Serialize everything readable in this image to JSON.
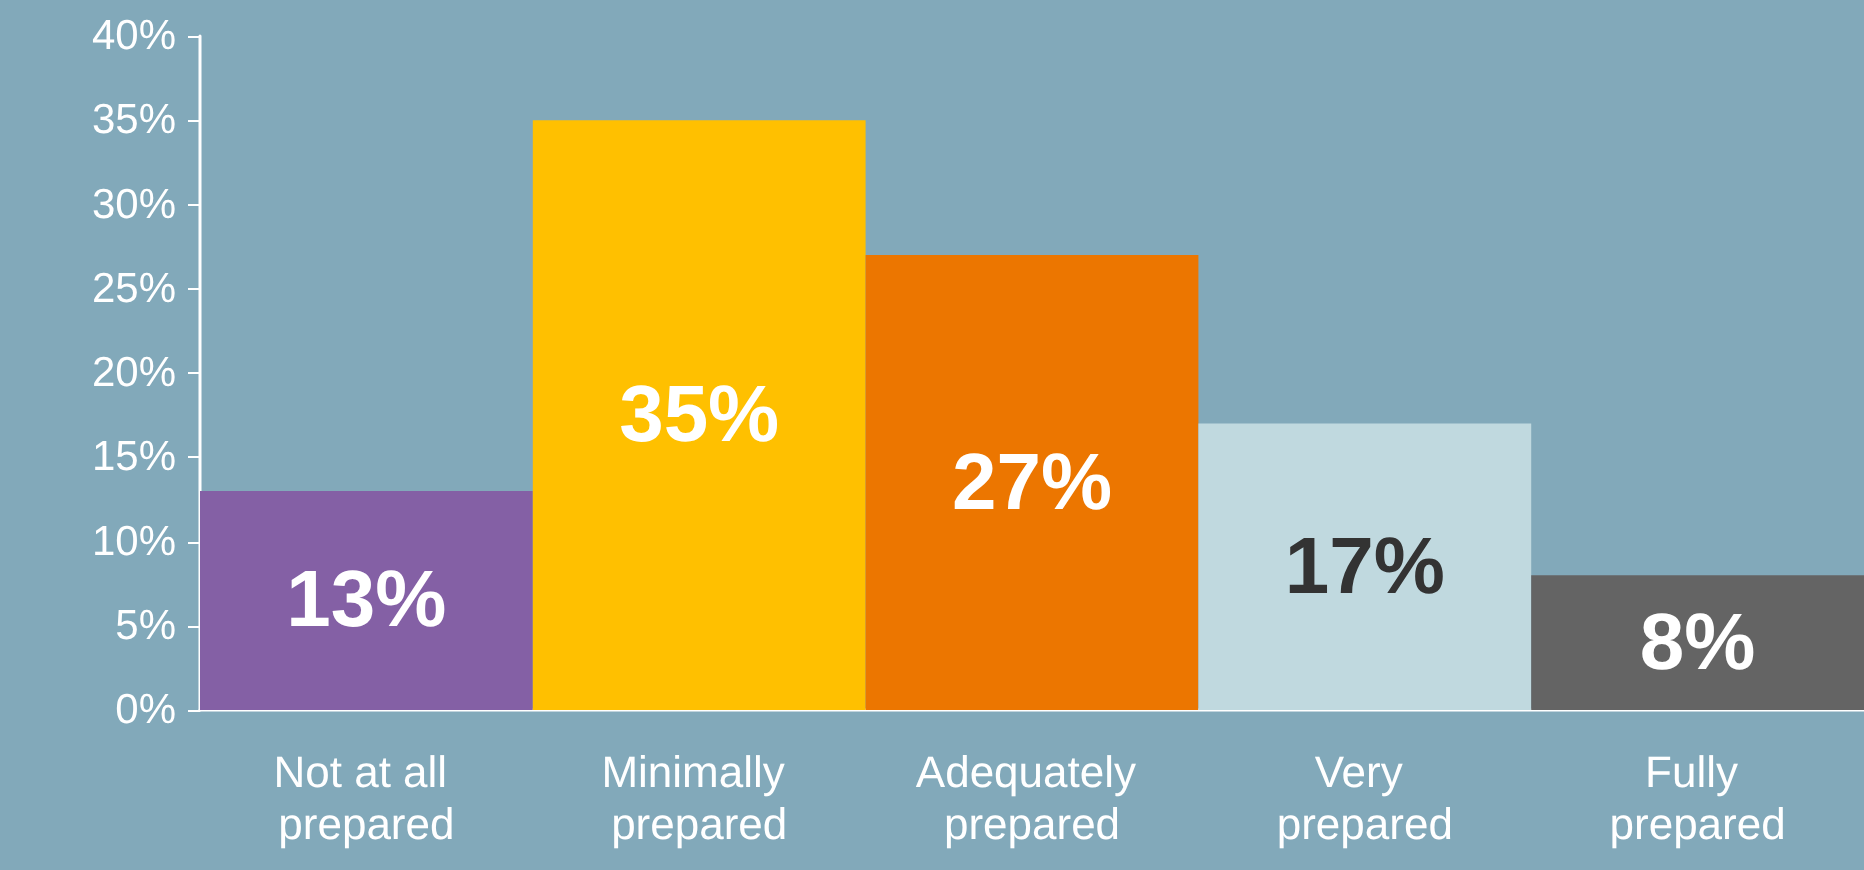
{
  "chart_data": {
    "type": "bar",
    "categories": [
      "Not at all prepared",
      "Minimally prepared",
      "Adequately prepared",
      "Very prepared",
      "Fully prepared"
    ],
    "values": [
      13,
      35,
      27,
      17,
      8
    ],
    "colors": [
      "#8460a5",
      "#ffc000",
      "#ec7600",
      "#c0d9df",
      "#646464"
    ],
    "value_labels": [
      "13%",
      "35%",
      "27%",
      "17%",
      "8%"
    ],
    "ylim": [
      0,
      40
    ],
    "yticks": [
      {
        "value": 0,
        "label": "0%"
      },
      {
        "value": 5,
        "label": "5%"
      },
      {
        "value": 10,
        "label": "10%"
      },
      {
        "value": 15,
        "label": "15%"
      },
      {
        "value": 20,
        "label": "20%"
      },
      {
        "value": 25,
        "label": "25%"
      },
      {
        "value": 30,
        "label": "30%"
      },
      {
        "value": 35,
        "label": "35%"
      },
      {
        "value": 40,
        "label": "40%"
      }
    ],
    "grid": false
  }
}
